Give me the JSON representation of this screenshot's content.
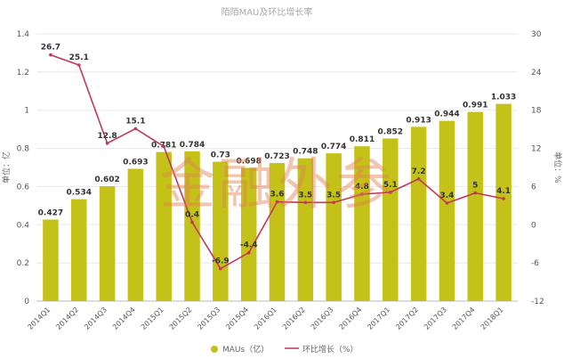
{
  "chart_data": {
    "type": "bar+line",
    "title": "陌陌MAU及环比增长率",
    "categories": [
      "2014Q1",
      "2014Q2",
      "2014Q3",
      "2014Q4",
      "2015Q1",
      "2015Q2",
      "2015Q3",
      "2015Q4",
      "2016Q1",
      "2016Q2",
      "2016Q3",
      "2016Q4",
      "2017Q1",
      "2017Q2",
      "2017Q3",
      "2017Q4",
      "2018Q1"
    ],
    "series": [
      {
        "name": "MAUs（亿）",
        "type": "bar",
        "axis": "left",
        "values": [
          0.427,
          0.534,
          0.602,
          0.693,
          0.781,
          0.784,
          0.73,
          0.698,
          0.723,
          0.748,
          0.774,
          0.811,
          0.852,
          0.913,
          0.944,
          0.991,
          1.033
        ],
        "labels": [
          "0.427",
          "0.534",
          "0.602",
          "0.693",
          "0.781",
          "0.784",
          "0.73",
          "0.698",
          "0.723",
          "0.748",
          "0.774",
          "0.811",
          "0.852",
          "0.913",
          "0.944",
          "0.991",
          "1.033"
        ]
      },
      {
        "name": "环比增长（%）",
        "type": "line",
        "axis": "right",
        "values": [
          26.7,
          25.1,
          12.8,
          15.1,
          12.3,
          0.4,
          -6.9,
          -4.4,
          3.6,
          3.5,
          3.5,
          4.8,
          5.1,
          7.2,
          3.4,
          5,
          4.1
        ],
        "labels": [
          "26.7",
          "25.1",
          "12.8",
          "15.1",
          "",
          "0.4",
          "-6.9",
          "-4.4",
          "3.6",
          "3.5",
          "3.5",
          "4.8",
          "5.1",
          "7.2",
          "3.4",
          "5",
          "4.1"
        ]
      }
    ],
    "ylabel": "单位：亿",
    "y2label": "单位：%",
    "ylim": [
      0,
      1.4
    ],
    "yticks": [
      "0",
      "0.2",
      "0.4",
      "0.6",
      "0.8",
      "1",
      "1.2",
      "1.4"
    ],
    "y2lim": [
      -12,
      30
    ],
    "y2ticks": [
      "-12",
      "-6",
      "0",
      "6",
      "12",
      "18",
      "24",
      "30"
    ],
    "grid": true,
    "legend": "bottom-center",
    "watermark": "金融外参",
    "colors": {
      "bar": "#c4c118",
      "line": "#c0395a",
      "grid": "#e8e8e8",
      "axis": "#bbbbbb"
    }
  }
}
